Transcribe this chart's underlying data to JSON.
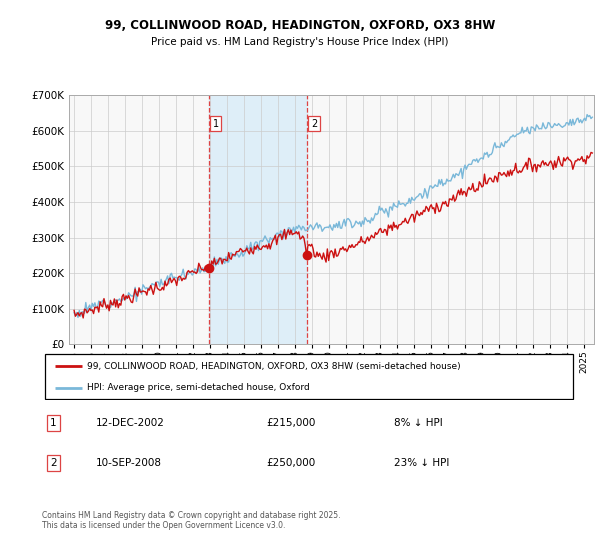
{
  "title_line1": "99, COLLINWOOD ROAD, HEADINGTON, OXFORD, OX3 8HW",
  "title_line2": "Price paid vs. HM Land Registry's House Price Index (HPI)",
  "sale1_date": "12-DEC-2002",
  "sale1_price": 215000,
  "sale1_pct": "8% ↓ HPI",
  "sale2_date": "10-SEP-2008",
  "sale2_price": 250000,
  "sale2_pct": "23% ↓ HPI",
  "legend_line1": "99, COLLINWOOD ROAD, HEADINGTON, OXFORD, OX3 8HW (semi-detached house)",
  "legend_line2": "HPI: Average price, semi-detached house, Oxford",
  "footnote": "Contains HM Land Registry data © Crown copyright and database right 2025.\nThis data is licensed under the Open Government Licence v3.0.",
  "hpi_color": "#7ab8d9",
  "price_color": "#cc1111",
  "shade_color": "#deeef8",
  "vline_color": "#dd4444",
  "ylim": [
    0,
    700000
  ],
  "yticks": [
    0,
    100000,
    200000,
    300000,
    400000,
    500000,
    600000,
    700000
  ],
  "background_color": "#f8f8f8",
  "sale1_x": 2002.95,
  "sale2_x": 2008.72,
  "xmin": 1994.7,
  "xmax": 2025.6
}
